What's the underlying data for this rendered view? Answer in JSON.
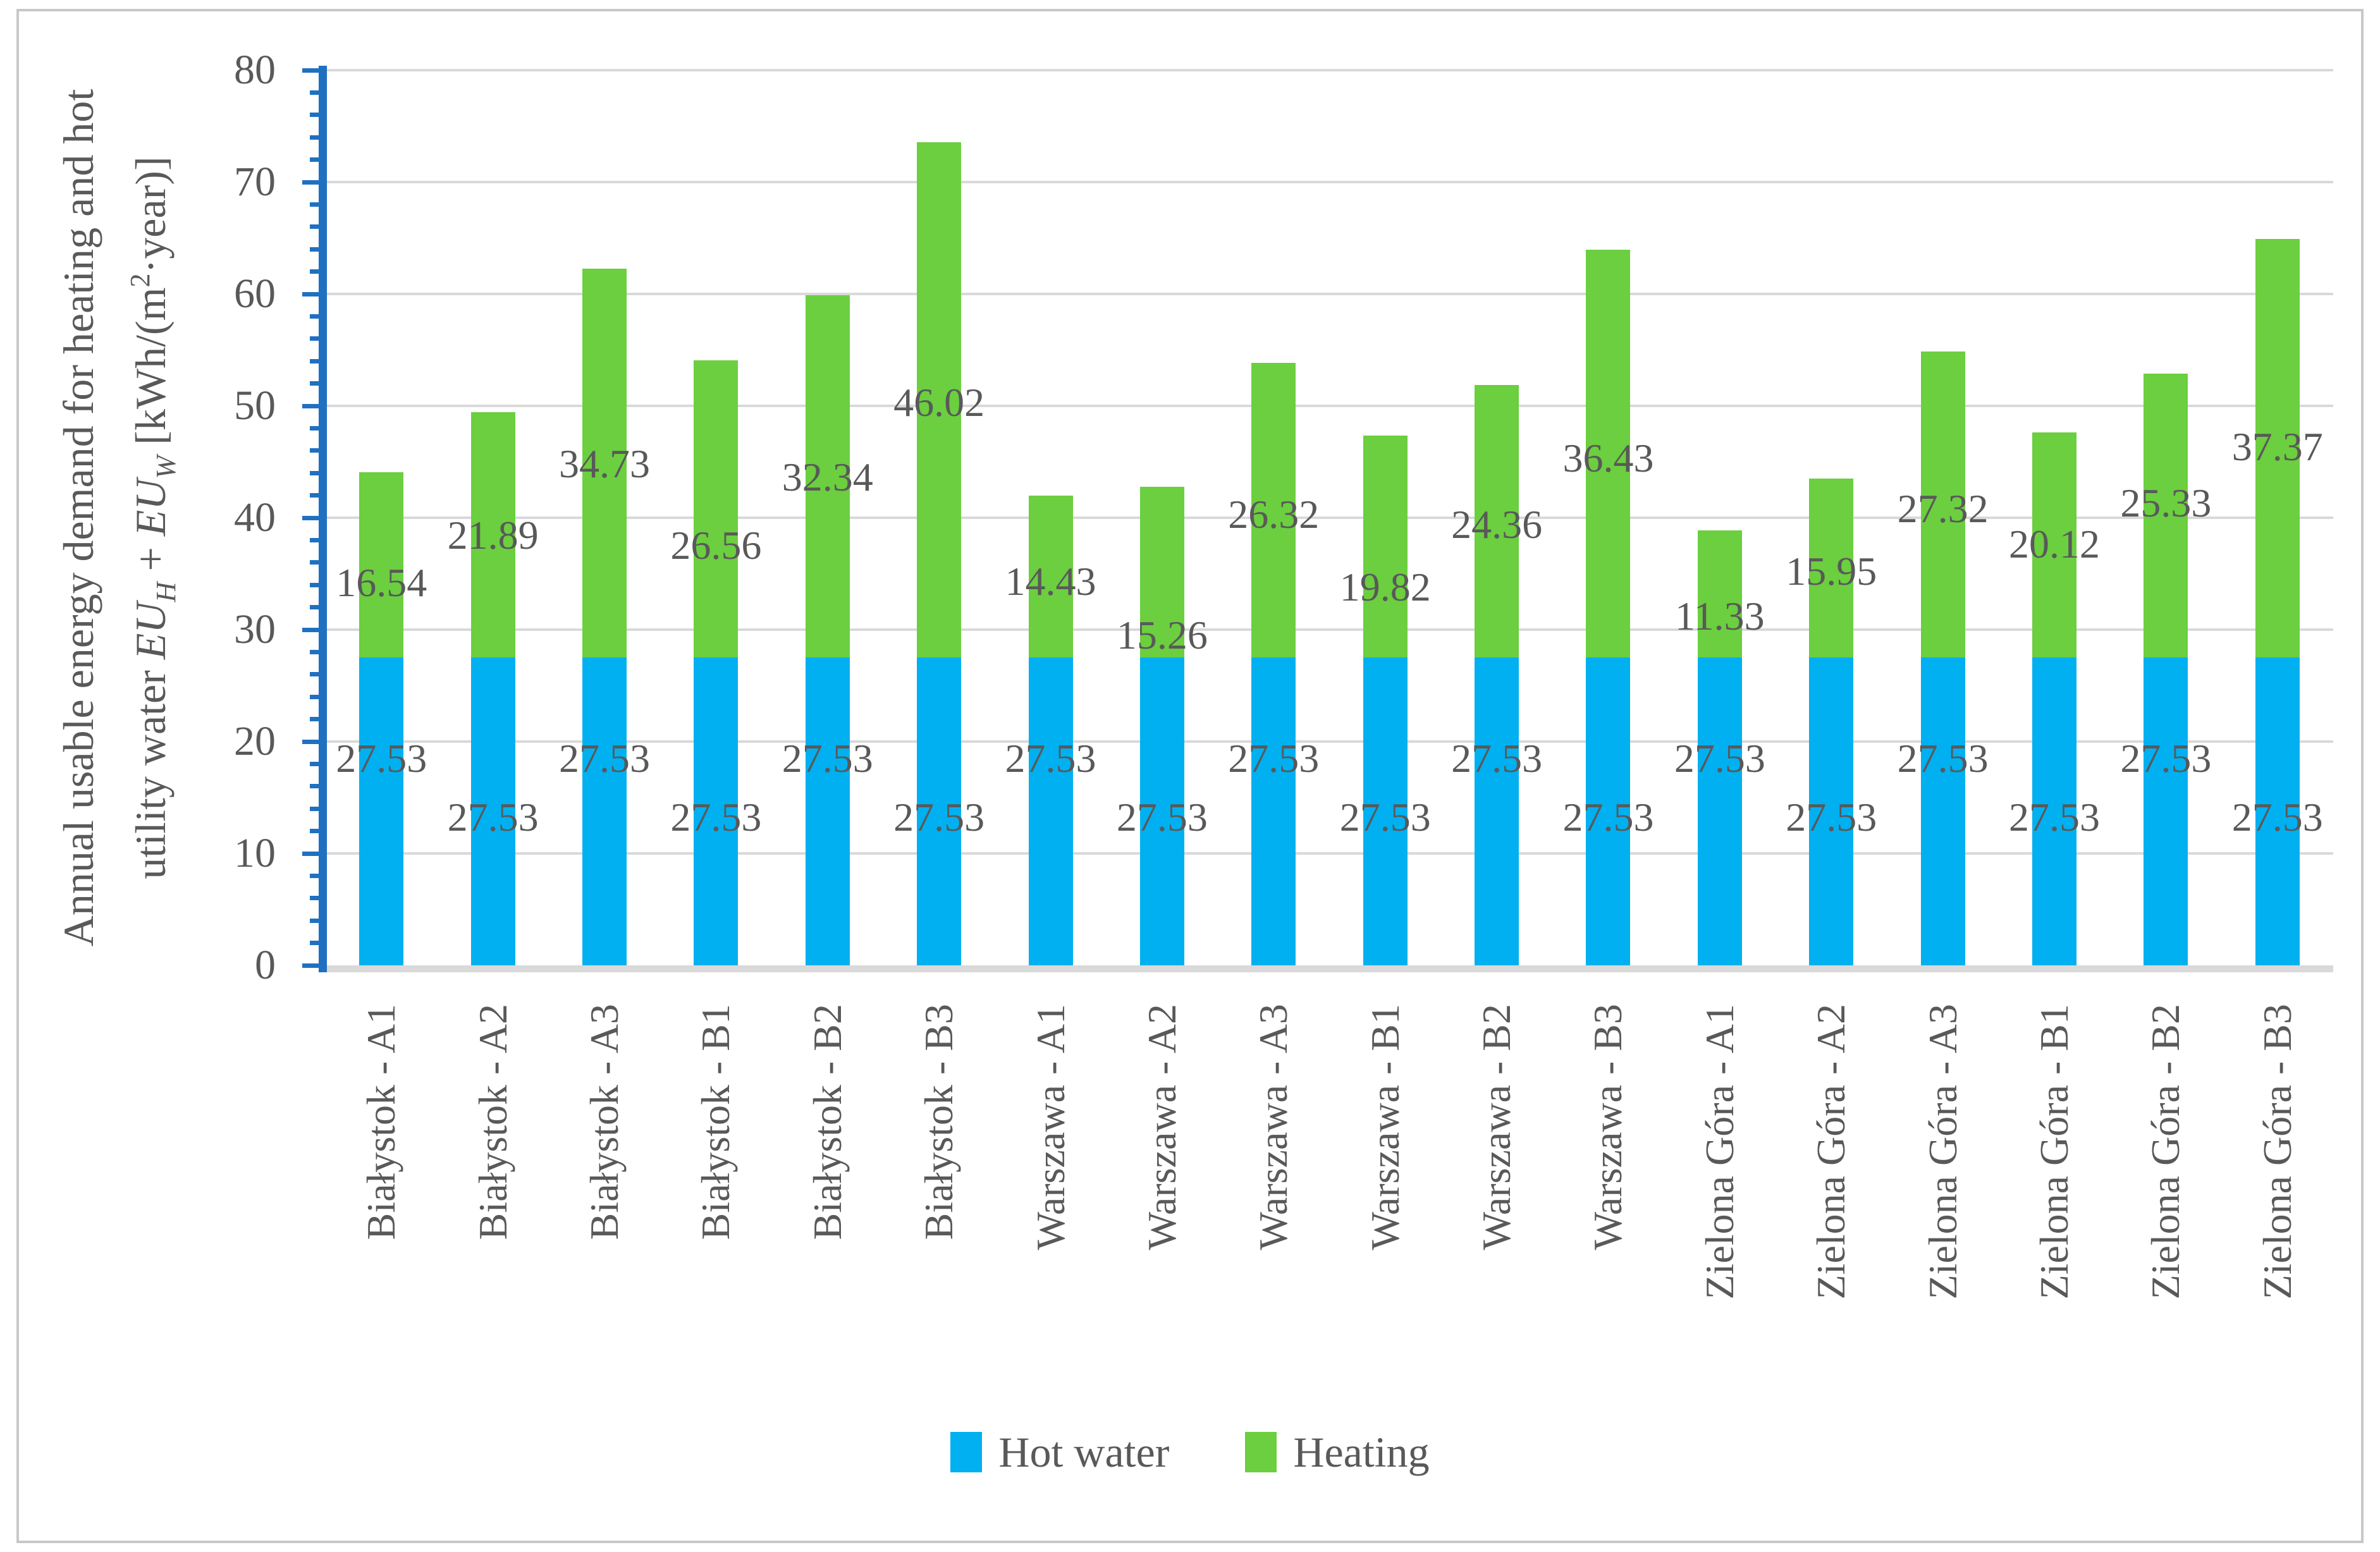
{
  "figure": {
    "background": "#FFFFFF",
    "border_color": "#C8C8C8"
  },
  "chart_data": {
    "type": "bar",
    "stacked": true,
    "title": "",
    "categories": [
      "Białystok - A1",
      "Białystok - A2",
      "Białystok - A3",
      "Białystok - B1",
      "Białystok - B2",
      "Białystok - B3",
      "Warszawa - A1",
      "Warszawa - A2",
      "Warszawa - A3",
      "Warszawa - B1",
      "Warszawa - B2",
      "Warszawa - B3",
      "Zielona Góra - A1",
      "Zielona Góra - A2",
      "Zielona Góra - A3",
      "Zielona Góra - B1",
      "Zielona Góra - B2",
      "Zielona Góra - B3"
    ],
    "series": [
      {
        "name": "Hot water",
        "color": "#00B0F0",
        "values": [
          27.53,
          27.53,
          27.53,
          27.53,
          27.53,
          27.53,
          27.53,
          27.53,
          27.53,
          27.53,
          27.53,
          27.53,
          27.53,
          27.53,
          27.53,
          27.53,
          27.53,
          27.53
        ]
      },
      {
        "name": "Heating",
        "color": "#6BCF3F",
        "values": [
          16.54,
          21.89,
          34.73,
          26.56,
          32.34,
          46.02,
          14.43,
          15.26,
          26.32,
          19.82,
          24.36,
          36.43,
          11.33,
          15.95,
          27.32,
          20.12,
          25.33,
          37.37
        ]
      }
    ],
    "ylim": [
      0,
      80
    ],
    "y_major_step": 10,
    "y_minor_step": 2,
    "grid": true,
    "gridline_color": "#D9D9D9",
    "axis_line_color": "#1F70C1",
    "x_axis_line_color": "#D9D9D9",
    "text_color": "#595959",
    "legend_position": "bottom",
    "data_label_decimals": 2,
    "label_levels": {
      "hot_water": [
        18.5,
        13.2,
        18.5,
        13.2,
        18.5,
        13.2,
        18.5,
        13.2,
        18.5,
        13.2,
        18.5,
        13.2,
        18.5,
        13.2,
        18.5,
        13.2,
        18.5,
        13.2
      ],
      "heating": [
        34.2,
        38.4,
        44.8,
        37.5,
        43.6,
        50.3,
        34.3,
        29.5,
        40.3,
        33.8,
        39.4,
        45.3,
        31.2,
        35.2,
        40.8,
        37.6,
        41.3,
        46.3
      ]
    },
    "ylabel": {
      "line1": "Annual usable energy demand for heating and hot",
      "line2_pre": "utility water ",
      "eu": "EU",
      "sub_h": "H",
      "plus": " + ",
      "sub_w": "W",
      "unit_pre": " [kWh/(m",
      "sup2": "2",
      "unit_post": "·year)]"
    }
  }
}
